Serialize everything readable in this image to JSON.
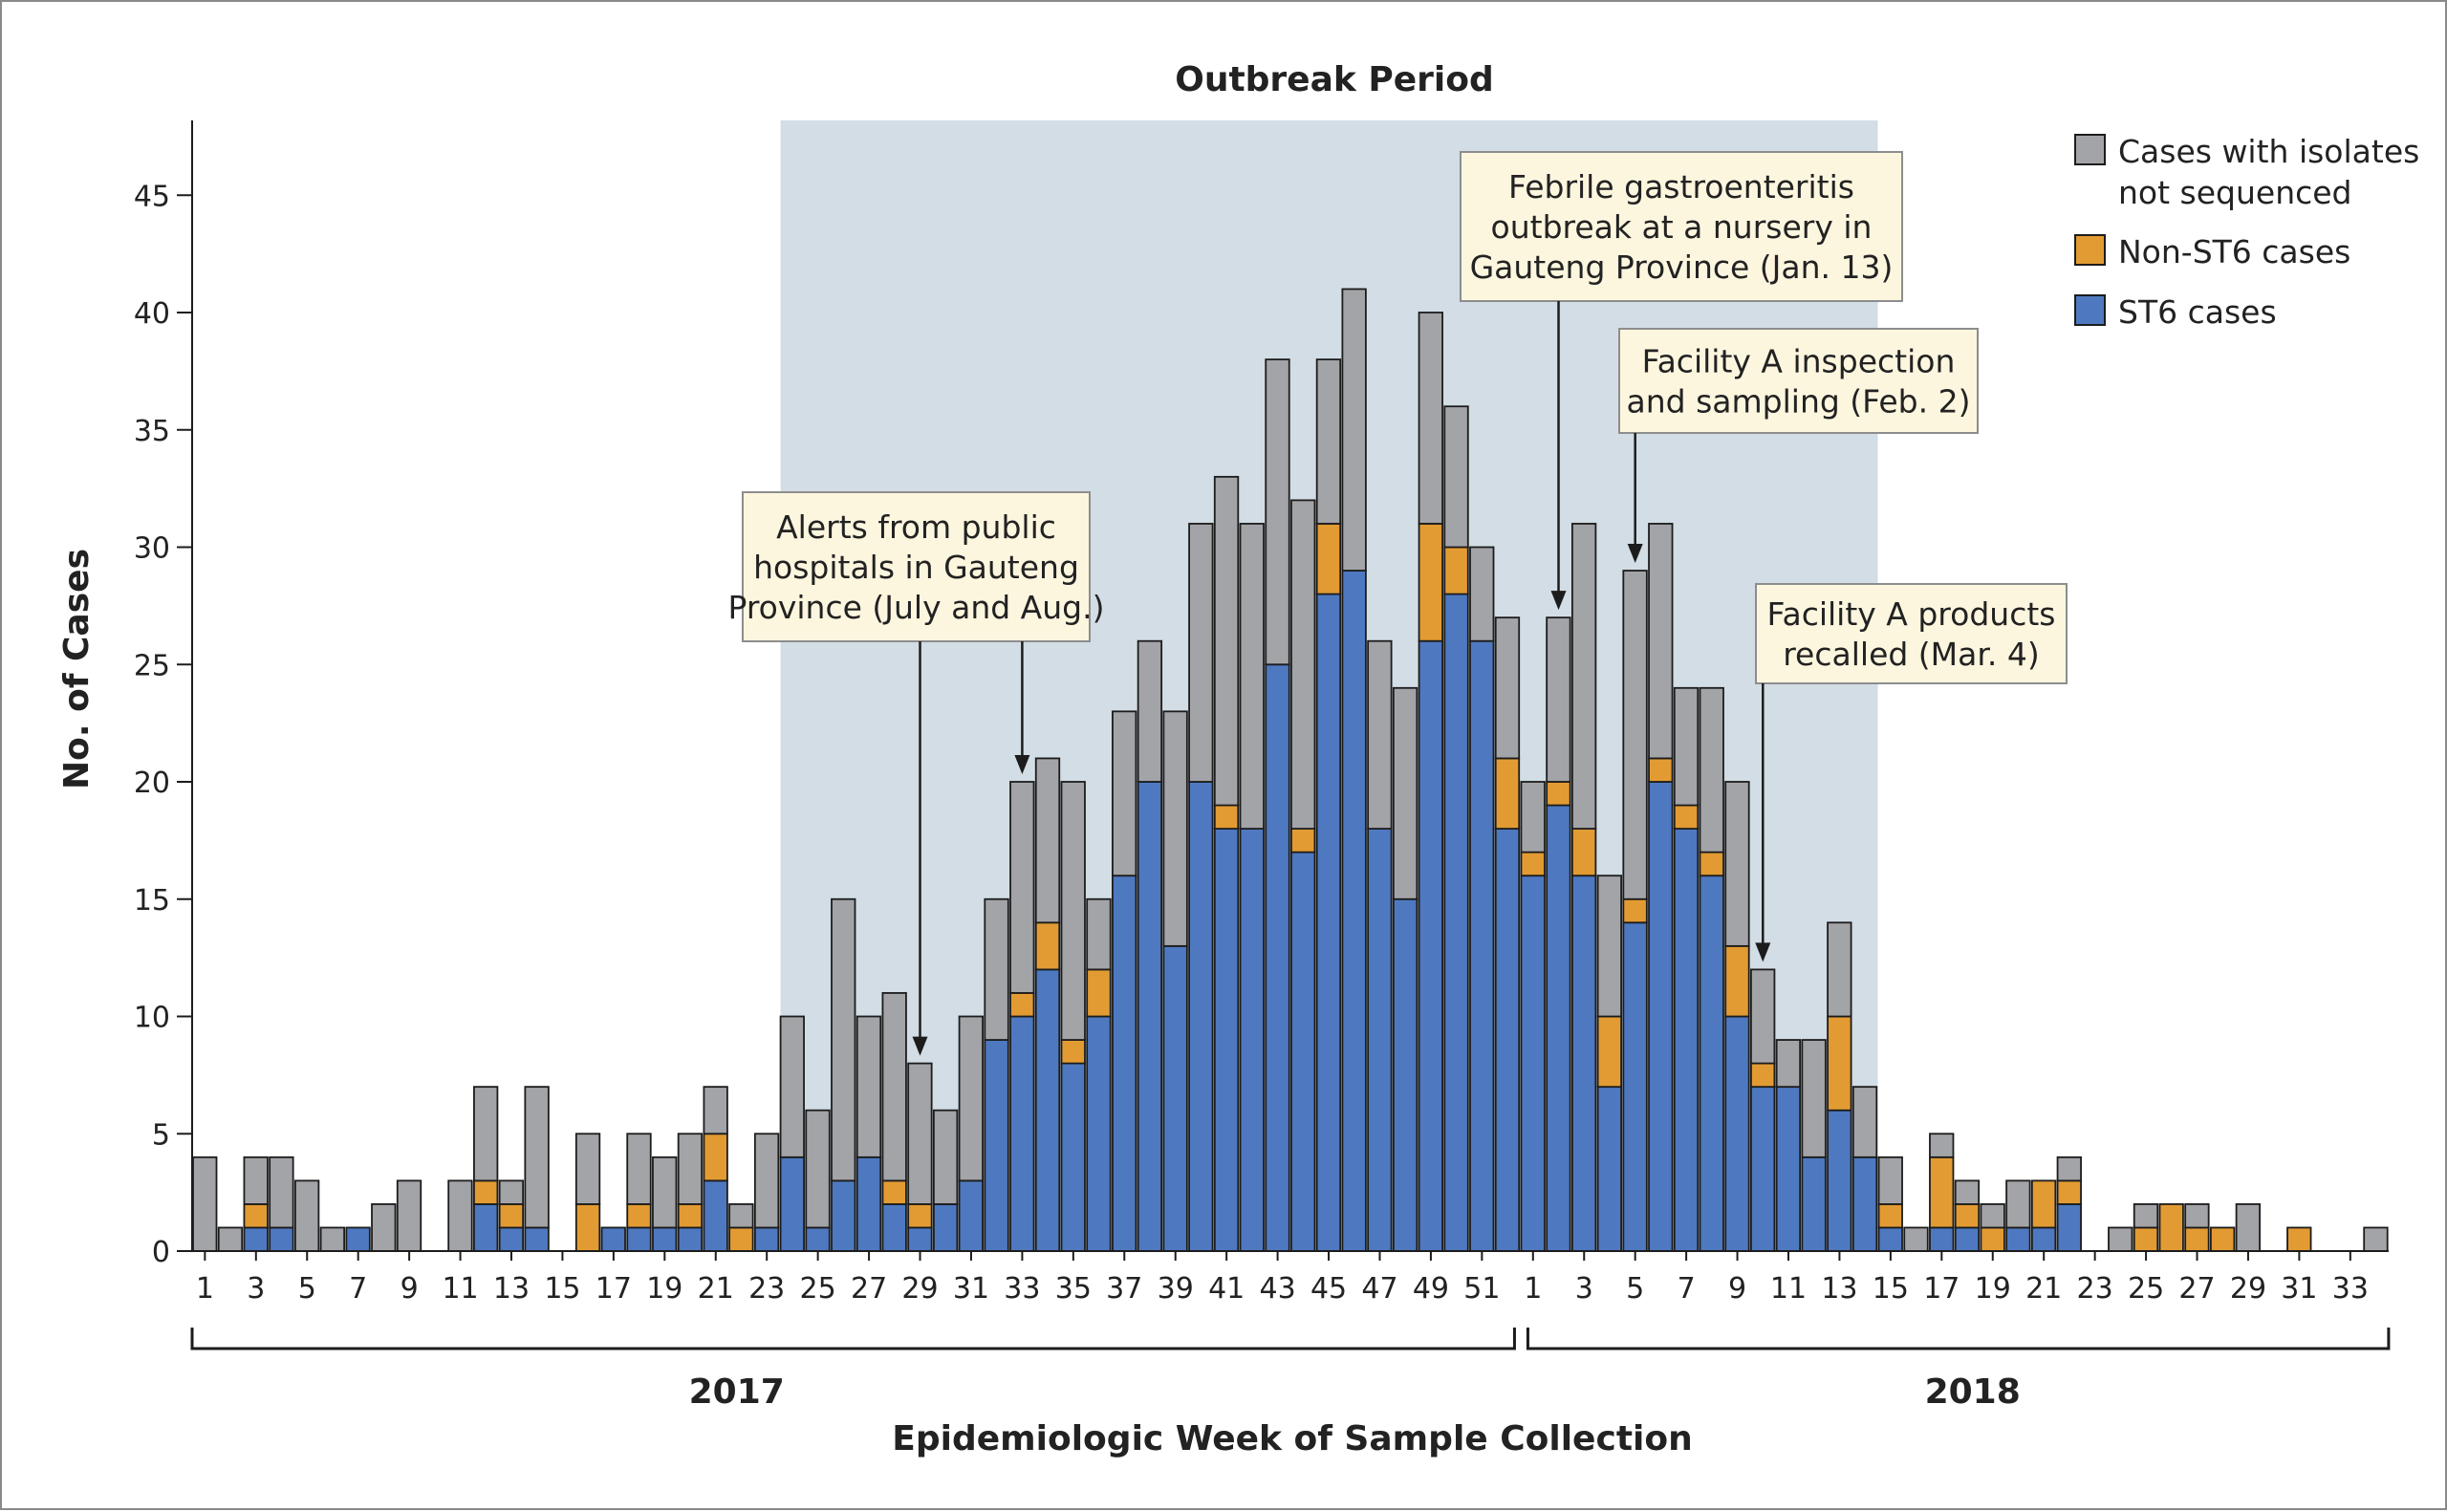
{
  "chart_data": {
    "type": "bar",
    "stacked": true,
    "title": "Outbreak Period",
    "xlabel": "Epidemiologic Week of Sample Collection",
    "ylabel": "No. of Cases",
    "ylim": [
      0,
      48
    ],
    "yticks": [
      0,
      5,
      10,
      15,
      20,
      25,
      30,
      35,
      40,
      45
    ],
    "years": [
      {
        "label": "2017",
        "weeks": 52
      },
      {
        "label": "2018",
        "weeks": 34
      }
    ],
    "categories": [
      "1",
      "2",
      "3",
      "4",
      "5",
      "6",
      "7",
      "8",
      "9",
      "10",
      "11",
      "12",
      "13",
      "14",
      "15",
      "16",
      "17",
      "18",
      "19",
      "20",
      "21",
      "22",
      "23",
      "24",
      "25",
      "26",
      "27",
      "28",
      "29",
      "30",
      "31",
      "32",
      "33",
      "34",
      "35",
      "36",
      "37",
      "38",
      "39",
      "40",
      "41",
      "42",
      "43",
      "44",
      "45",
      "46",
      "47",
      "48",
      "49",
      "50",
      "51",
      "52",
      "1",
      "2",
      "3",
      "4",
      "5",
      "6",
      "7",
      "8",
      "9",
      "10",
      "11",
      "12",
      "13",
      "14",
      "15",
      "16",
      "17",
      "18",
      "19",
      "20",
      "21",
      "22",
      "23",
      "24",
      "25",
      "26",
      "27",
      "28",
      "29",
      "30",
      "31",
      "32",
      "33",
      "34"
    ],
    "tick_labels": [
      "1",
      "",
      "3",
      "",
      "5",
      "",
      "7",
      "",
      "9",
      "",
      "11",
      "",
      "13",
      "",
      "15",
      "",
      "17",
      "",
      "19",
      "",
      "21",
      "",
      "23",
      "",
      "25",
      "",
      "27",
      "",
      "29",
      "",
      "31",
      "",
      "33",
      "",
      "35",
      "",
      "37",
      "",
      "39",
      "",
      "41",
      "",
      "43",
      "",
      "45",
      "",
      "47",
      "",
      "49",
      "",
      "51",
      "",
      "1",
      "",
      "3",
      "",
      "5",
      "",
      "7",
      "",
      "9",
      "",
      "11",
      "",
      "13",
      "",
      "15",
      "",
      "17",
      "",
      "19",
      "",
      "21",
      "",
      "23",
      "",
      "25",
      "",
      "27",
      "",
      "29",
      "",
      "31",
      "",
      "33",
      ""
    ],
    "series": [
      {
        "name": "ST6 cases",
        "color": "#4e79c0",
        "values": [
          0,
          0,
          1,
          1,
          0,
          0,
          1,
          0,
          0,
          0,
          0,
          2,
          1,
          1,
          0,
          0,
          1,
          1,
          1,
          1,
          3,
          0,
          1,
          4,
          1,
          3,
          4,
          2,
          1,
          2,
          3,
          9,
          10,
          12,
          8,
          10,
          16,
          20,
          13,
          20,
          18,
          18,
          25,
          17,
          28,
          29,
          18,
          15,
          26,
          28,
          26,
          18,
          16,
          19,
          16,
          7,
          14,
          20,
          18,
          16,
          10,
          7,
          7,
          4,
          6,
          4,
          1,
          0,
          1,
          1,
          0,
          1,
          1,
          2,
          0,
          0,
          0,
          0,
          0,
          0,
          0,
          0,
          0,
          0,
          0,
          0
        ]
      },
      {
        "name": "Non-ST6 cases",
        "color": "#e29b33",
        "values": [
          0,
          0,
          1,
          0,
          0,
          0,
          0,
          0,
          0,
          0,
          0,
          1,
          1,
          0,
          0,
          2,
          0,
          1,
          0,
          1,
          2,
          1,
          0,
          0,
          0,
          0,
          0,
          1,
          1,
          0,
          0,
          0,
          1,
          2,
          1,
          2,
          0,
          0,
          0,
          0,
          1,
          0,
          0,
          1,
          3,
          0,
          0,
          0,
          5,
          2,
          0,
          3,
          1,
          1,
          2,
          3,
          1,
          1,
          1,
          1,
          3,
          1,
          0,
          0,
          4,
          0,
          1,
          0,
          3,
          1,
          1,
          0,
          2,
          1,
          0,
          0,
          1,
          2,
          1,
          1,
          0,
          0,
          1,
          0,
          0,
          0
        ]
      },
      {
        "name": "Cases with isolates not sequenced",
        "color": "#a3a4a8",
        "values": [
          4,
          1,
          2,
          3,
          3,
          1,
          0,
          2,
          3,
          0,
          3,
          4,
          1,
          6,
          0,
          3,
          0,
          3,
          3,
          3,
          2,
          1,
          4,
          6,
          5,
          12,
          6,
          8,
          6,
          4,
          7,
          6,
          9,
          7,
          11,
          3,
          7,
          6,
          10,
          11,
          14,
          13,
          13,
          14,
          7,
          12,
          8,
          9,
          9,
          6,
          4,
          6,
          3,
          7,
          13,
          6,
          14,
          10,
          5,
          7,
          7,
          4,
          2,
          5,
          4,
          3,
          2,
          1,
          1,
          1,
          1,
          2,
          0,
          1,
          0,
          1,
          1,
          0,
          1,
          0,
          2,
          0,
          0,
          0,
          0,
          1
        ]
      }
    ],
    "outbreak_period": {
      "label": "Outbreak Period",
      "from_index": 23,
      "to_index": 65,
      "color": "#d2dde5"
    },
    "annotations": [
      {
        "lines": [
          "Alerts from public",
          "hospitals in Gauteng",
          "Province (July and Aug.)"
        ],
        "arrows_to_index": [
          28,
          32
        ]
      },
      {
        "lines": [
          "Febrile gastroenteritis",
          "outbreak at a nursery in",
          "Gauteng Province (Jan. 13)"
        ],
        "arrows_to_index": [
          53
        ]
      },
      {
        "lines": [
          "Facility A inspection",
          "and sampling (Feb. 2)"
        ],
        "arrows_to_index": [
          56
        ]
      },
      {
        "lines": [
          "Facility A products",
          "recalled (Mar. 4)"
        ],
        "arrows_to_index": [
          61
        ]
      }
    ],
    "legend": {
      "placement": "top-right",
      "items": [
        {
          "lines": [
            "Cases with isolates",
            "not sequenced"
          ],
          "color": "#a3a4a8"
        },
        {
          "lines": [
            "Non-ST6 cases"
          ],
          "color": "#e29b33"
        },
        {
          "lines": [
            "ST6 cases"
          ],
          "color": "#4e79c0"
        }
      ]
    },
    "grid": false
  }
}
